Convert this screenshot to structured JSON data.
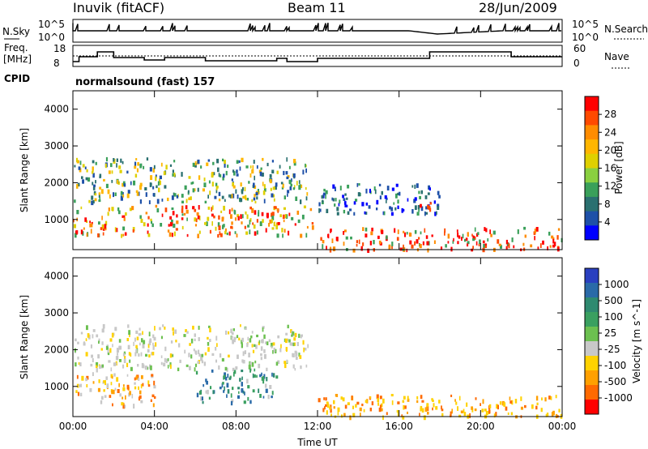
{
  "header": {
    "station": "Inuvik (fitACF)",
    "beam": "Beam 11",
    "date": "28/Jun/2009"
  },
  "noise_panel": {
    "left_label": "N.Sky",
    "left_ticks": [
      "10^5",
      "10^0"
    ],
    "right_label": "N.Search",
    "right_ticks": [
      "10^5",
      "10^0"
    ]
  },
  "freq_panel": {
    "left_label_1": "Freq.",
    "left_label_2": "[MHz]",
    "left_ticks": [
      "18",
      "8"
    ],
    "right_label": "Nave",
    "right_ticks": [
      "60",
      "0"
    ],
    "cpid_label": "CPID",
    "mode_text": "normalsound (fast) 157"
  },
  "power_colorbar": {
    "label": "Power [dB]",
    "ticks": [
      "28",
      "24",
      "20",
      "16",
      "12",
      "8",
      "4"
    ],
    "colors": [
      "#ff0000",
      "#ff4a00",
      "#ff8c00",
      "#ffb600",
      "#dfd000",
      "#8ad040",
      "#3aa05a",
      "#2a7070",
      "#1e50a8",
      "#0000ff"
    ]
  },
  "velocity_colorbar": {
    "label": "Velocity [m s^-1]",
    "ticks": [
      "1000",
      "500",
      "100",
      "25",
      "-25",
      "-100",
      "-500",
      "-1000"
    ],
    "colors": [
      "#2a40c0",
      "#2a6aa8",
      "#2f8a70",
      "#3aa060",
      "#6cc050",
      "#c8c8c8",
      "#ffd200",
      "#ffa000",
      "#ff6a00",
      "#ff0000"
    ]
  },
  "chart_data": [
    {
      "type": "heatmap",
      "quantity": "Power",
      "unit": "dB",
      "xlabel": "",
      "ylabel": "Slant Range [km]",
      "x_ticks": [
        "00:00",
        "04:00",
        "08:00",
        "12:00",
        "16:00",
        "20:00",
        "00:00"
      ],
      "y_ticks": [
        1000,
        2000,
        3000,
        4000
      ],
      "ylim": [
        180,
        4500
      ],
      "colorbar_range": [
        0,
        30
      ],
      "echo_regions": [
        {
          "t": [
            0,
            12
          ],
          "range_km": [
            600,
            1400
          ],
          "value": "16-28 dB"
        },
        {
          "t": [
            0,
            11.5
          ],
          "range_km": [
            1500,
            2700
          ],
          "value": "8-20 dB"
        },
        {
          "t": [
            12,
            18
          ],
          "range_km": [
            1200,
            2000
          ],
          "value": "4-12 dB"
        },
        {
          "t": [
            12,
            24
          ],
          "range_km": [
            200,
            800
          ],
          "value": "20-30 dB"
        },
        {
          "t": [
            16.8,
            17.6
          ],
          "range_km": [
            1300,
            1600
          ],
          "value": "28 dB"
        }
      ]
    },
    {
      "type": "heatmap",
      "quantity": "Velocity",
      "unit": "m s^-1",
      "xlabel": "Time UT",
      "ylabel": "Slant Range [km]",
      "x_ticks": [
        "00:00",
        "04:00",
        "08:00",
        "12:00",
        "16:00",
        "20:00",
        "00:00"
      ],
      "y_ticks": [
        1000,
        2000,
        3000,
        4000
      ],
      "ylim": [
        180,
        4500
      ],
      "colorbar_range": [
        -1000,
        1000
      ],
      "echo_regions": [
        {
          "t": [
            0,
            4
          ],
          "range_km": [
            500,
            1400
          ],
          "value": "-100 to -500"
        },
        {
          "t": [
            0,
            11.5
          ],
          "range_km": [
            1500,
            2700
          ],
          "value": "-25 to 25"
        },
        {
          "t": [
            6,
            10
          ],
          "range_km": [
            600,
            1500
          ],
          "value": "100 to 500"
        },
        {
          "t": [
            12,
            24
          ],
          "range_km": [
            200,
            800
          ],
          "value": "-100 to -500"
        }
      ]
    }
  ]
}
